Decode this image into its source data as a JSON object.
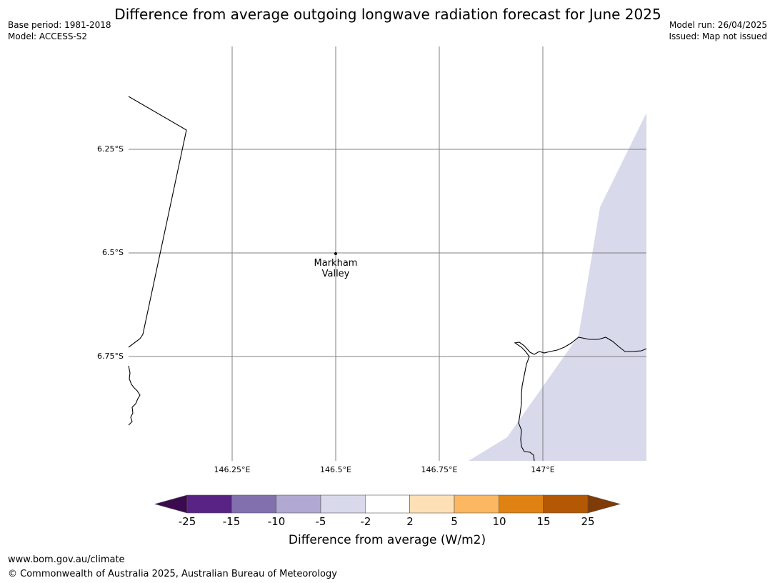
{
  "title": "Difference from average outgoing longwave radiation forecast for June 2025",
  "meta_left": {
    "base_period": "Base period: 1981-2018",
    "model": "Model: ACCESS-S2"
  },
  "meta_right": {
    "model_run": "Model run: 26/04/2025",
    "issued": "Issued: Map not issued"
  },
  "map": {
    "latitudes": [
      "6.25°S",
      "6.5°S",
      "6.75°S"
    ],
    "longitudes": [
      "146.25°E",
      "146.5°E",
      "146.75°E",
      "147°E"
    ],
    "place": {
      "name_line1": "Markham",
      "name_line2": "Valley"
    },
    "colors": {
      "coast": "#000000",
      "grid": "#808080",
      "anomaly_fill": "#d8d9eb"
    }
  },
  "colorbar": {
    "label": "Difference from average (W/m2)",
    "ticks": [
      "-25",
      "-15",
      "-10",
      "-5",
      "-2",
      "2",
      "5",
      "10",
      "15",
      "25"
    ],
    "colors": [
      "#3b0a4f",
      "#582384",
      "#8270ae",
      "#b1a9d2",
      "#d8d9eb",
      "#ffffff",
      "#fee0b6",
      "#fbb761",
      "#e08213",
      "#b35906",
      "#7f3b08"
    ]
  },
  "footer": {
    "url": "www.bom.gov.au/climate",
    "copyright": "© Commonwealth of Australia 2025, Australian Bureau of Meteorology"
  }
}
